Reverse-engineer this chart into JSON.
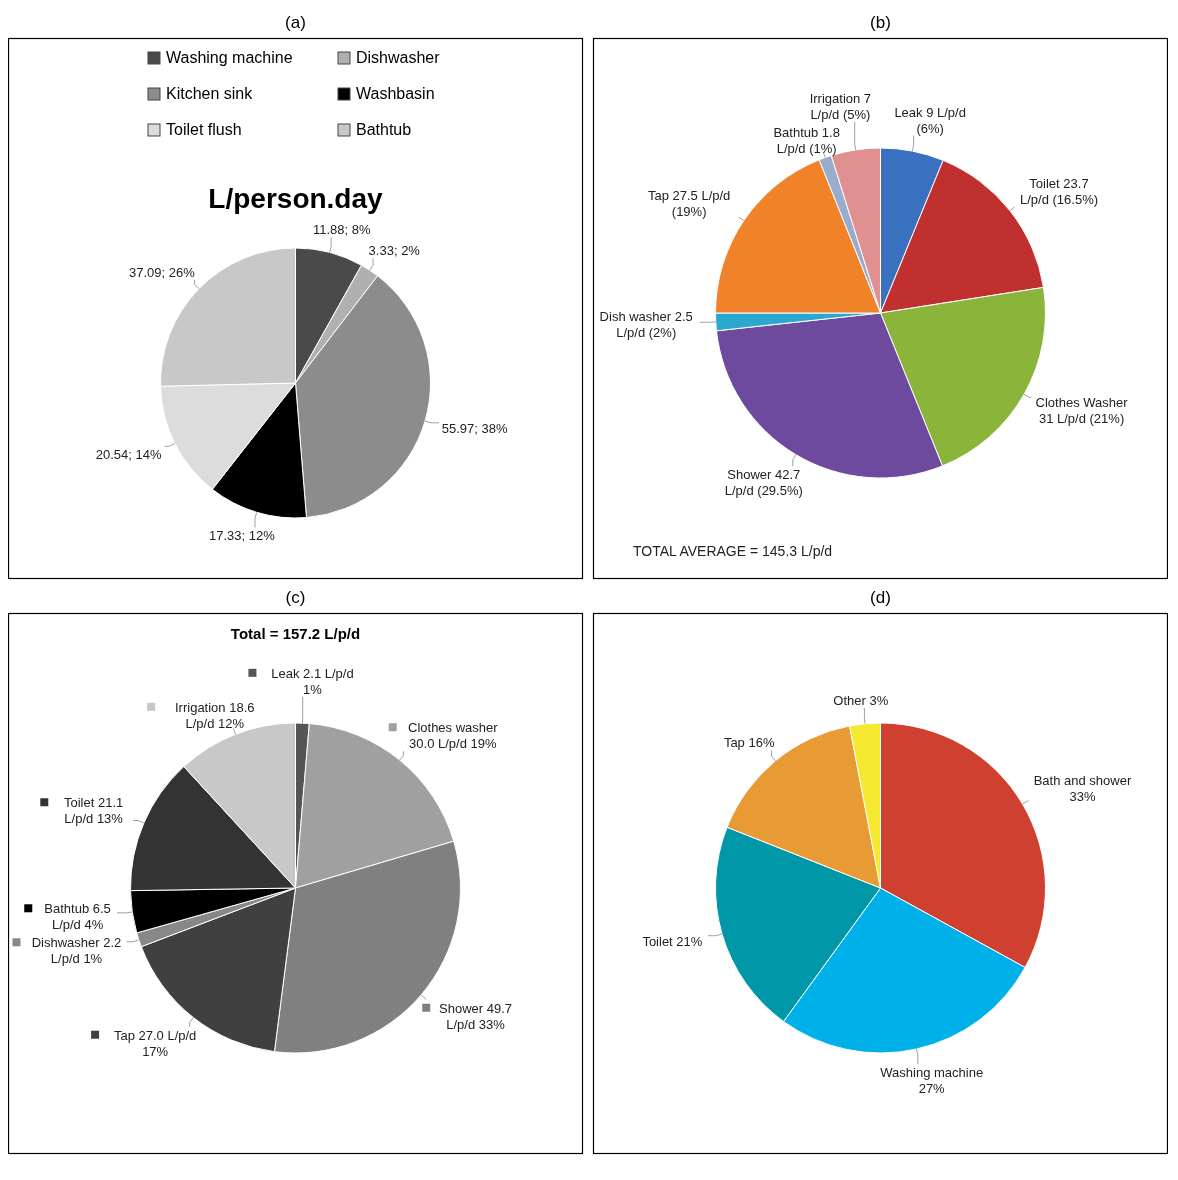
{
  "chart_data": [
    {
      "type": "pie",
      "title": "(a)",
      "subtitle": "L/person.day",
      "categories": [
        "Washing machine",
        "Dishwasher",
        "Kitchen sink",
        "Washbasin",
        "Toilet flush",
        "Bathtub"
      ],
      "values": [
        11.88,
        3.33,
        55.97,
        17.33,
        20.54,
        37.09
      ],
      "colors": [
        "#4a4a4a",
        "#b0b0b0",
        "#8c8c8c",
        "#000000",
        "#dcdcdc",
        "#c8c8c8"
      ],
      "value_labels": [
        "11.88; 8%",
        "3.33; 2%",
        "55.97; 38%",
        "17.33; 12%",
        "20.54; 14%",
        "37.09; 26%"
      ],
      "legend": "top"
    },
    {
      "type": "pie",
      "title": "(b)",
      "categories": [
        "Leak",
        "Toilet",
        "Clothes Washer",
        "Shower",
        "Dish washer",
        "Tap",
        "Bathtub",
        "Irrigation"
      ],
      "values": [
        9,
        23.7,
        31,
        42.7,
        2.5,
        27.5,
        1.8,
        7
      ],
      "colors": [
        "#3a70c0",
        "#c0302e",
        "#8ab43a",
        "#6e4a9e",
        "#2aa8d0",
        "#f0822a",
        "#9aaccc",
        "#e09090"
      ],
      "value_labels": [
        "9 L/p/d (6%)",
        "23.7 L/p/d (16.5%)",
        "31 L/p/d (21%)",
        "42.7 L/p/d (29.5%)",
        "2.5 L/p/d (2%)",
        "27.5 L/p/d (19%)",
        "1.8 L/p/d (1%)",
        "7 L/p/d (5%)"
      ],
      "annotations": [
        "TOTAL AVERAGE = 145.3 L/p/d"
      ]
    },
    {
      "type": "pie",
      "title": "(c)",
      "subtitle": "Total = 157.2 L/p/d",
      "categories": [
        "Leak",
        "Clothes washer",
        "Shower",
        "Tap",
        "Dishwasher",
        "Bathtub",
        "Toilet",
        "Irrigation"
      ],
      "values": [
        2.1,
        30.0,
        49.7,
        27.0,
        2.2,
        6.5,
        21.1,
        18.6
      ],
      "colors": [
        "#555555",
        "#a0a0a0",
        "#808080",
        "#404040",
        "#888888",
        "#000000",
        "#333333",
        "#c8c8c8"
      ],
      "value_labels": [
        "2.1 L/p/d 1%",
        "30.0 L/p/d 19%",
        "49.7 L/p/d 33%",
        "27.0 L/p/d 17%",
        "2.2 L/p/d 1%",
        "6.5 L/p/d 4%",
        "21.1 L/p/d 13%",
        "18.6 L/p/d 12%"
      ],
      "legend": "top left",
      "marker": "square"
    },
    {
      "type": "pie",
      "title": "(d)",
      "categories": [
        "Bath and shower",
        "Washing machine",
        "Toilet",
        "Tap",
        "Other"
      ],
      "values": [
        33,
        27,
        21,
        16,
        3
      ],
      "colors": [
        "#d04030",
        "#00b0e8",
        "#0097a8",
        "#e89a35",
        "#f5e830"
      ],
      "value_labels": [
        "33%",
        "27%",
        "21%",
        "16%",
        "3%"
      ]
    }
  ]
}
